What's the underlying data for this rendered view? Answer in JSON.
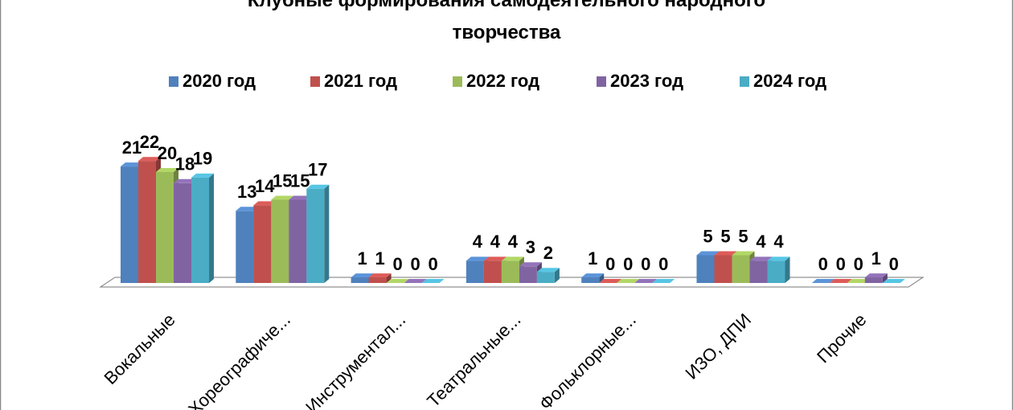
{
  "chart_data": {
    "type": "bar3d",
    "title": "Клубные формирования самодеятельного народного творчества",
    "categories": [
      "Вокальные",
      "Хореографиче...",
      "Инструментал...",
      "Театральные...",
      "Фольклорные...",
      "ИЗО, ДПИ",
      "Прочие"
    ],
    "series": [
      {
        "name": "2020 год",
        "color": "#4f81bd",
        "values": [
          21,
          13,
          1,
          4,
          1,
          5,
          0
        ]
      },
      {
        "name": "2021 год",
        "color": "#c0504d",
        "values": [
          22,
          14,
          1,
          4,
          0,
          5,
          0
        ]
      },
      {
        "name": "2022 год",
        "color": "#9bbb59",
        "values": [
          20,
          15,
          0,
          4,
          0,
          5,
          0
        ]
      },
      {
        "name": "2023 год",
        "color": "#8064a2",
        "values": [
          18,
          15,
          0,
          3,
          0,
          4,
          1
        ]
      },
      {
        "name": "2024 год",
        "color": "#4bacc6",
        "values": [
          19,
          17,
          0,
          2,
          0,
          4,
          0
        ]
      }
    ],
    "legend": "top"
  }
}
